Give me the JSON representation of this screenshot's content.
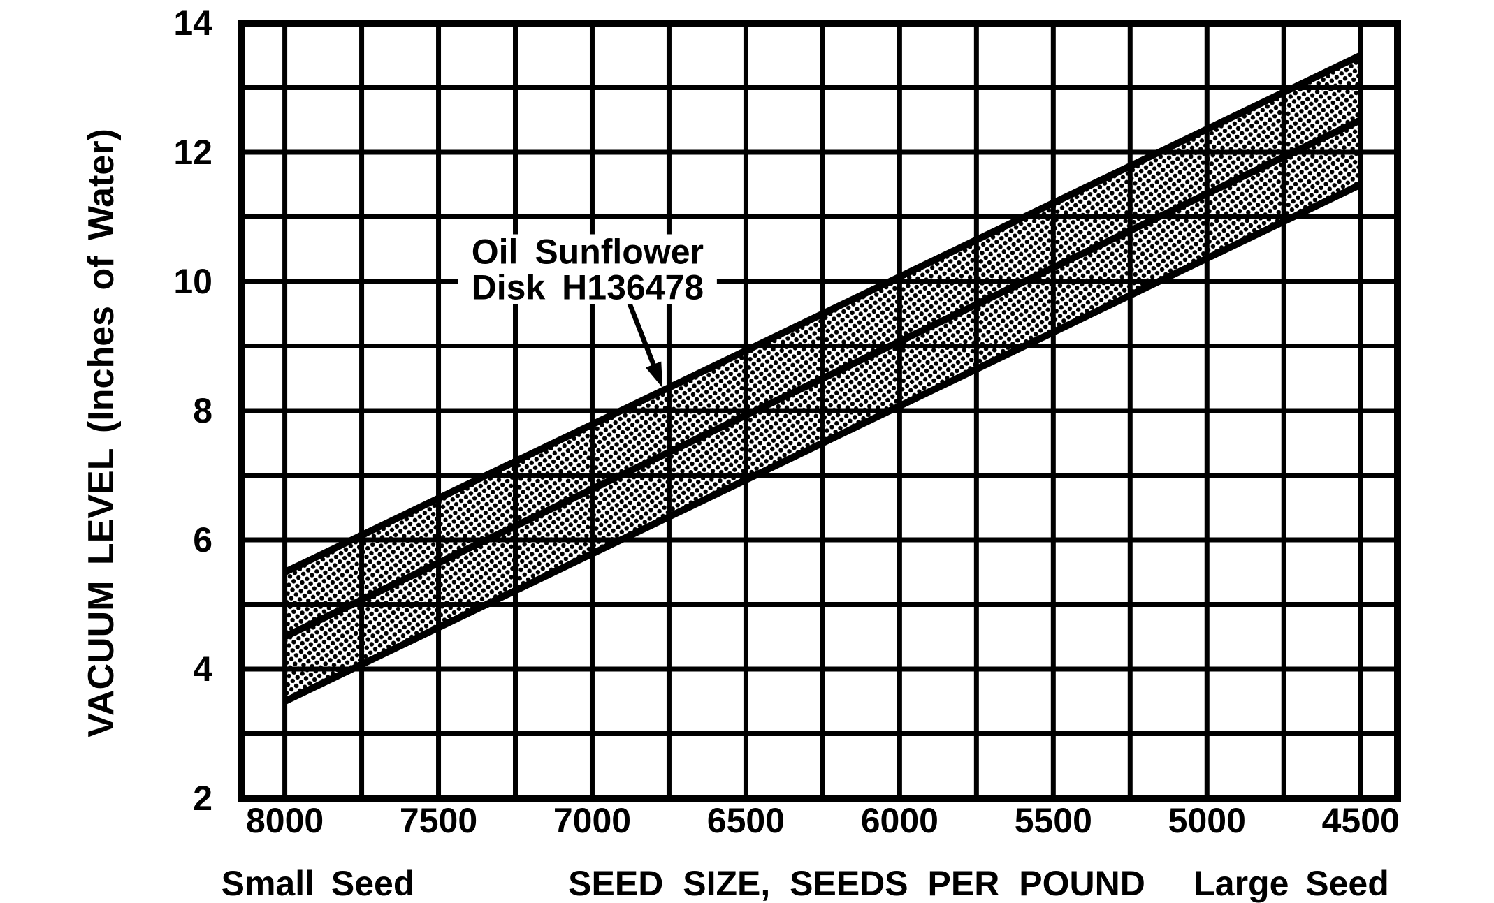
{
  "page": {
    "background": "#ffffff",
    "ink": "#000000",
    "kind": "scanned printed chart"
  },
  "chart_data": {
    "type": "line",
    "title": "",
    "xlabel": "SEED SIZE, SEEDS PER POUND",
    "ylabel": "VACUUM LEVEL (Inches of Water)",
    "x_left_caption": "Small Seed",
    "x_right_caption": "Large Seed",
    "x_axis_reversed": true,
    "xlim": [
      8140,
      4380
    ],
    "ylim": [
      2,
      14
    ],
    "grid": "on",
    "x_ticks_labeled": [
      8000,
      7500,
      7000,
      6500,
      6000,
      5500,
      5000,
      4500
    ],
    "x_minor_step": 250,
    "y_ticks_labeled": [
      14,
      12,
      10,
      8,
      6,
      4,
      2
    ],
    "y_minor_step": 1,
    "band_x": [
      8000,
      4500
    ],
    "series": [
      {
        "name": "band-upper",
        "x": [
          8000,
          4500
        ],
        "values": [
          5.5,
          13.5
        ]
      },
      {
        "name": "band-middle",
        "x": [
          8000,
          4500
        ],
        "values": [
          4.5,
          12.5
        ]
      },
      {
        "name": "band-lower",
        "x": [
          8000,
          4500
        ],
        "values": [
          3.5,
          11.5
        ]
      }
    ],
    "band_fill": "halftone-stipple-dots",
    "annotation": {
      "lines": [
        "Oil Sunflower",
        "Disk H136478"
      ],
      "anchor_x": 7015,
      "anchor_y": 10.2,
      "arrow": {
        "x1": 6886,
        "y1": 9.75,
        "x2": 6770,
        "y2": 8.35
      }
    },
    "colors": {
      "ink": "#000000",
      "background": "#ffffff"
    }
  }
}
